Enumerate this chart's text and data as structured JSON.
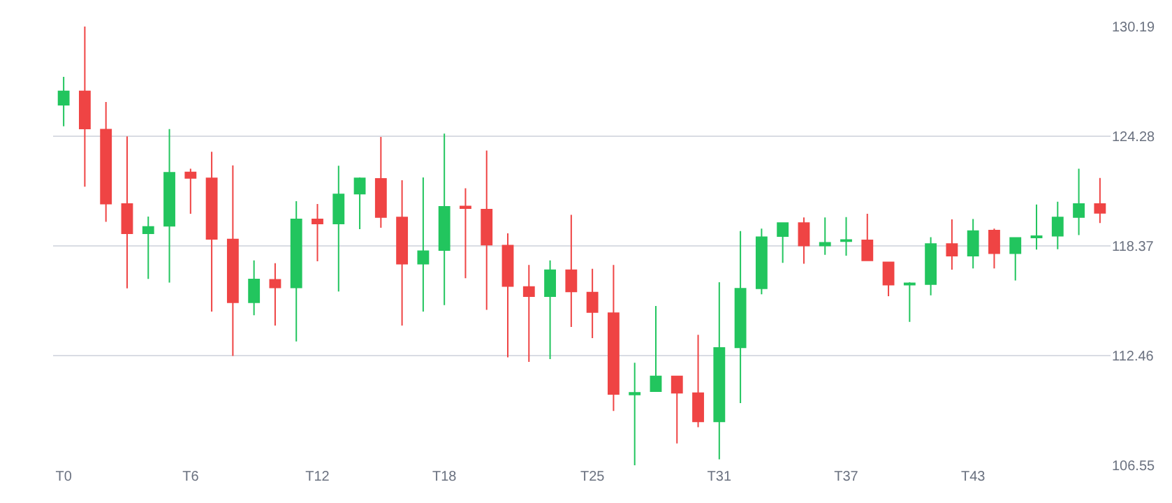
{
  "chart_data": {
    "type": "candlestick",
    "categories": [
      "T0",
      null,
      null,
      null,
      null,
      null,
      "T6",
      null,
      null,
      null,
      null,
      null,
      "T12",
      null,
      null,
      null,
      null,
      null,
      "T18",
      null,
      null,
      null,
      null,
      null,
      null,
      "T25",
      null,
      null,
      null,
      null,
      null,
      "T31",
      null,
      null,
      null,
      null,
      null,
      "T37",
      null,
      null,
      null,
      null,
      null,
      "T43",
      null,
      null,
      null,
      null,
      null,
      null
    ],
    "ohlc": [
      [
        125.97,
        127.48,
        124.82,
        126.7
      ],
      [
        126.7,
        130.19,
        121.56,
        124.69
      ],
      [
        124.64,
        126.12,
        119.67,
        120.65
      ],
      [
        120.63,
        124.27,
        116.08,
        119.05
      ],
      [
        119.05,
        119.95,
        116.59,
        119.4
      ],
      [
        119.45,
        124.67,
        116.39,
        122.31
      ],
      [
        122.33,
        122.53,
        120.1,
        122.03
      ],
      [
        122.01,
        123.44,
        114.83,
        118.75
      ],
      [
        118.72,
        122.71,
        112.44,
        115.33
      ],
      [
        115.33,
        117.59,
        114.63,
        116.56
      ],
      [
        116.54,
        117.44,
        114.08,
        116.13
      ],
      [
        116.13,
        120.78,
        113.22,
        119.8
      ],
      [
        119.8,
        120.63,
        117.54,
        119.57
      ],
      [
        119.57,
        122.69,
        115.91,
        121.15
      ],
      [
        121.18,
        122.06,
        119.27,
        122.01
      ],
      [
        121.98,
        124.24,
        119.35,
        119.92
      ],
      [
        119.9,
        121.91,
        114.08,
        117.41
      ],
      [
        117.41,
        122.06,
        114.83,
        118.09
      ],
      [
        118.14,
        124.42,
        115.18,
        120.48
      ],
      [
        120.5,
        121.48,
        116.63,
        120.4
      ],
      [
        120.33,
        123.51,
        114.93,
        118.44
      ],
      [
        118.39,
        119.05,
        112.37,
        116.21
      ],
      [
        116.16,
        117.34,
        112.12,
        115.66
      ],
      [
        115.66,
        117.59,
        112.27,
        117.06
      ],
      [
        117.06,
        120.05,
        114.0,
        115.91
      ],
      [
        115.86,
        117.14,
        113.4,
        114.8
      ],
      [
        114.75,
        117.34,
        109.48,
        110.39
      ],
      [
        110.36,
        112.07,
        106.55,
        110.46
      ],
      [
        110.54,
        115.13,
        110.5,
        111.34
      ],
      [
        111.34,
        111.34,
        107.73,
        110.46
      ],
      [
        110.44,
        113.58,
        108.6,
        108.91
      ],
      [
        108.91,
        116.41,
        106.87,
        112.87
      ],
      [
        112.9,
        119.17,
        109.9,
        116.06
      ],
      [
        116.08,
        119.3,
        115.76,
        118.84
      ],
      [
        118.9,
        119.6,
        117.46,
        119.6
      ],
      [
        119.6,
        119.9,
        117.41,
        118.39
      ],
      [
        118.39,
        119.9,
        117.89,
        118.54
      ],
      [
        118.62,
        119.92,
        117.84,
        118.69
      ],
      [
        118.67,
        120.1,
        117.59,
        117.59
      ],
      [
        117.49,
        117.49,
        115.66,
        116.28
      ],
      [
        116.28,
        116.41,
        114.28,
        116.36
      ],
      [
        116.31,
        118.84,
        115.71,
        118.47
      ],
      [
        118.47,
        119.8,
        117.09,
        117.84
      ],
      [
        117.84,
        119.82,
        117.16,
        119.17
      ],
      [
        119.2,
        119.3,
        117.16,
        117.97
      ],
      [
        117.97,
        118.8,
        116.51,
        118.8
      ],
      [
        118.82,
        120.6,
        118.17,
        118.9
      ],
      [
        118.92,
        120.75,
        118.19,
        119.9
      ],
      [
        119.92,
        122.53,
        118.95,
        120.63
      ],
      [
        120.63,
        122.03,
        119.6,
        120.15
      ]
    ],
    "colors": [
      "#22c55e",
      "#ef4444",
      "#ef4444",
      "#ef4444",
      "#22c55e",
      "#22c55e",
      "#ef4444",
      "#ef4444",
      "#ef4444",
      "#22c55e",
      "#ef4444",
      "#22c55e",
      "#ef4444",
      "#22c55e",
      "#22c55e",
      "#ef4444",
      "#ef4444",
      "#22c55e",
      "#22c55e",
      "#ef4444",
      "#ef4444",
      "#ef4444",
      "#ef4444",
      "#22c55e",
      "#ef4444",
      "#ef4444",
      "#ef4444",
      "#22c55e",
      "#22c55e",
      "#ef4444",
      "#ef4444",
      "#22c55e",
      "#22c55e",
      "#22c55e",
      "#22c55e",
      "#ef4444",
      "#22c55e",
      "#22c55e",
      "#ef4444",
      "#ef4444",
      "#22c55e",
      "#22c55e",
      "#ef4444",
      "#22c55e",
      "#ef4444",
      "#22c55e",
      "#22c55e",
      "#22c55e",
      "#22c55e",
      "#ef4444"
    ],
    "ylim": [
      106.55,
      130.19
    ],
    "yticks": [
      106.55,
      112.46,
      118.37,
      124.28,
      130.19
    ],
    "grid": "y"
  }
}
